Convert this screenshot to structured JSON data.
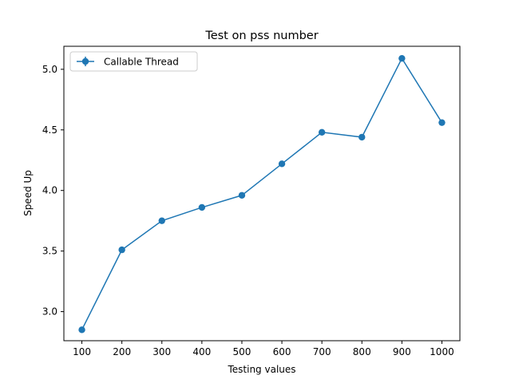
{
  "chart_data": {
    "type": "line",
    "title": "Test on pss number",
    "xlabel": "Testing values",
    "ylabel": "Speed Up",
    "x": [
      100,
      200,
      300,
      400,
      500,
      600,
      700,
      800,
      900,
      1000
    ],
    "xticks": [
      "100",
      "200",
      "300",
      "400",
      "500",
      "600",
      "700",
      "800",
      "900",
      "1000"
    ],
    "yticks": [
      "3.0",
      "3.5",
      "4.0",
      "4.5",
      "5.0"
    ],
    "xlim": [
      55,
      1045
    ],
    "ylim": [
      2.76,
      5.19
    ],
    "series": [
      {
        "name": "Callable Thread",
        "color": "#1f77b4",
        "marker": "circle",
        "errorbars": true,
        "values": [
          2.85,
          3.51,
          3.75,
          3.86,
          3.96,
          4.22,
          4.48,
          4.44,
          5.09,
          4.56
        ]
      }
    ],
    "legend": {
      "position": "top-left"
    },
    "grid": false
  }
}
